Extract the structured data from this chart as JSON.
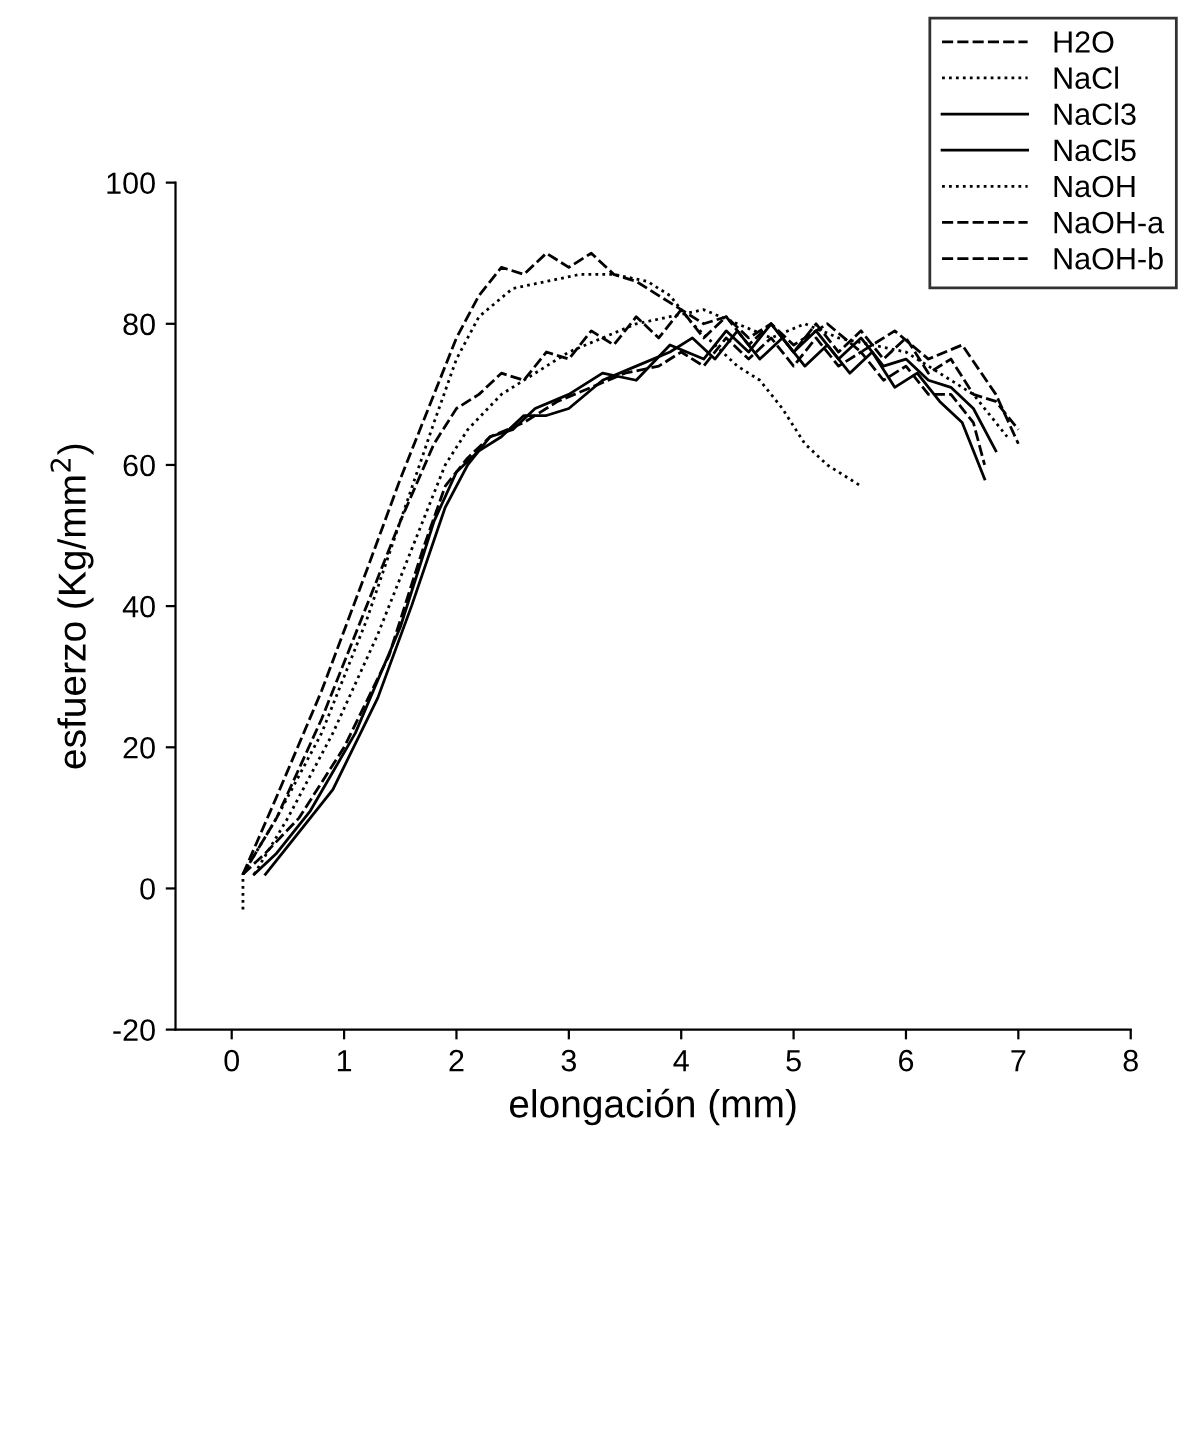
{
  "chart_data": {
    "type": "line",
    "xlabel": "elongación (mm)",
    "ylabel": "esfuerzo (Kg/mm$^{2}$)",
    "xlim": [
      -0.5,
      8
    ],
    "ylim": [
      -20,
      100
    ],
    "xticks": [
      0,
      1,
      2,
      3,
      4,
      5,
      6,
      7,
      8
    ],
    "yticks": [
      -20,
      0,
      20,
      40,
      60,
      80,
      100
    ],
    "grid": false,
    "legend": "top right",
    "marker": "none",
    "series": [
      {
        "name": "H2O",
        "color": "#000000",
        "line_style": "dashed",
        "x": [
          0.1,
          0.3,
          0.6,
          1.0,
          1.4,
          1.7,
          1.9,
          2.1,
          2.3,
          2.6,
          2.9,
          3.2,
          3.5,
          3.8,
          4.0,
          4.2,
          4.4,
          4.6,
          4.8,
          5.0,
          5.2,
          5.4,
          5.6,
          5.8,
          6.0,
          6.2,
          6.4,
          6.6,
          6.7
        ],
        "values": [
          2,
          5,
          10,
          20,
          33,
          48,
          57,
          61,
          64,
          66,
          69,
          71,
          73,
          74,
          76,
          74,
          78,
          75,
          78,
          74,
          78,
          74,
          76,
          72,
          74,
          70,
          70,
          66,
          60
        ]
      },
      {
        "name": "NaCl",
        "color": "#000000",
        "line_style": "dotted",
        "x": [
          0.1,
          0.1,
          0.4,
          0.8,
          1.2,
          1.5,
          1.8,
          2.0,
          2.2,
          2.5,
          2.8,
          3.1,
          3.4,
          3.7,
          3.9,
          4.1,
          4.3,
          4.5,
          4.7,
          4.9,
          5.1,
          5.3,
          5.6
        ],
        "values": [
          -3,
          2,
          10,
          22,
          38,
          52,
          66,
          75,
          81,
          85,
          86,
          87,
          87,
          86,
          84,
          80,
          77,
          74,
          72,
          68,
          63,
          60,
          57
        ]
      },
      {
        "name": "NaCl3",
        "color": "#000000",
        "line_style": "solid",
        "x": [
          0.2,
          0.4,
          0.7,
          1.1,
          1.5,
          1.8,
          2.0,
          2.2,
          2.4,
          2.6,
          2.8,
          3.0,
          3.3,
          3.6,
          3.9,
          4.1,
          4.3,
          4.5,
          4.7,
          4.9,
          5.1,
          5.3,
          5.5,
          5.7,
          5.9,
          6.1,
          6.3,
          6.5,
          6.7
        ],
        "values": [
          2,
          5,
          11,
          22,
          37,
          52,
          59,
          62,
          64,
          67,
          67,
          68,
          72,
          74,
          76,
          78,
          75,
          79,
          75,
          78,
          74,
          77,
          73,
          76,
          71,
          73,
          69,
          66,
          58
        ]
      },
      {
        "name": "NaCl5",
        "color": "#000000",
        "line_style": "solid",
        "x": [
          0.3,
          0.5,
          0.9,
          1.3,
          1.6,
          1.9,
          2.1,
          2.3,
          2.5,
          2.7,
          3.0,
          3.3,
          3.6,
          3.9,
          4.2,
          4.4,
          4.6,
          4.8,
          5.0,
          5.2,
          5.4,
          5.6,
          5.8,
          6.0,
          6.2,
          6.4,
          6.6,
          6.8
        ],
        "values": [
          2,
          6,
          14,
          27,
          40,
          54,
          60,
          64,
          65,
          68,
          70,
          73,
          72,
          77,
          75,
          79,
          76,
          80,
          76,
          79,
          75,
          78,
          74,
          75,
          72,
          71,
          68,
          62
        ]
      },
      {
        "name": "NaOH",
        "color": "#000000",
        "line_style": "dotted",
        "x": [
          0.2,
          0.5,
          0.9,
          1.3,
          1.6,
          1.9,
          2.1,
          2.4,
          2.7,
          3.0,
          3.3,
          3.6,
          3.9,
          4.2,
          4.5,
          4.8,
          5.1,
          5.4,
          5.7,
          6.0,
          6.3,
          6.6,
          6.9
        ],
        "values": [
          2,
          10,
          22,
          36,
          48,
          60,
          65,
          70,
          73,
          76,
          78,
          80,
          81,
          82,
          80,
          78,
          80,
          78,
          77,
          76,
          73,
          70,
          64
        ]
      },
      {
        "name": "NaOH-a",
        "color": "#000000",
        "line_style": "dashed",
        "x": [
          0.1,
          0.4,
          0.8,
          1.2,
          1.5,
          1.8,
          2.0,
          2.2,
          2.4,
          2.6,
          2.8,
          3.0,
          3.2,
          3.4,
          3.6,
          3.8,
          4.0,
          4.2,
          4.4,
          4.6,
          4.8,
          5.0,
          5.2,
          5.4,
          5.6,
          5.8,
          6.0,
          6.2,
          6.4,
          6.6,
          6.8,
          7.0
        ],
        "values": [
          2,
          10,
          24,
          40,
          52,
          63,
          68,
          70,
          73,
          72,
          76,
          75,
          79,
          77,
          81,
          78,
          82,
          78,
          81,
          77,
          80,
          76,
          80,
          76,
          79,
          75,
          78,
          73,
          75,
          70,
          69,
          65
        ]
      },
      {
        "name": "NaOH-b",
        "color": "#000000",
        "line_style": "dashed",
        "x": [
          0.1,
          0.4,
          0.8,
          1.2,
          1.5,
          1.8,
          2.0,
          2.2,
          2.4,
          2.6,
          2.8,
          3.0,
          3.2,
          3.4,
          3.6,
          3.8,
          4.0,
          4.2,
          4.4,
          4.6,
          4.8,
          5.0,
          5.3,
          5.6,
          5.9,
          6.2,
          6.5,
          6.8,
          7.0
        ],
        "values": [
          2,
          13,
          28,
          45,
          58,
          70,
          78,
          84,
          88,
          87,
          90,
          88,
          90,
          87,
          86,
          84,
          82,
          80,
          81,
          78,
          80,
          77,
          80,
          76,
          79,
          75,
          77,
          70,
          63
        ]
      }
    ]
  }
}
